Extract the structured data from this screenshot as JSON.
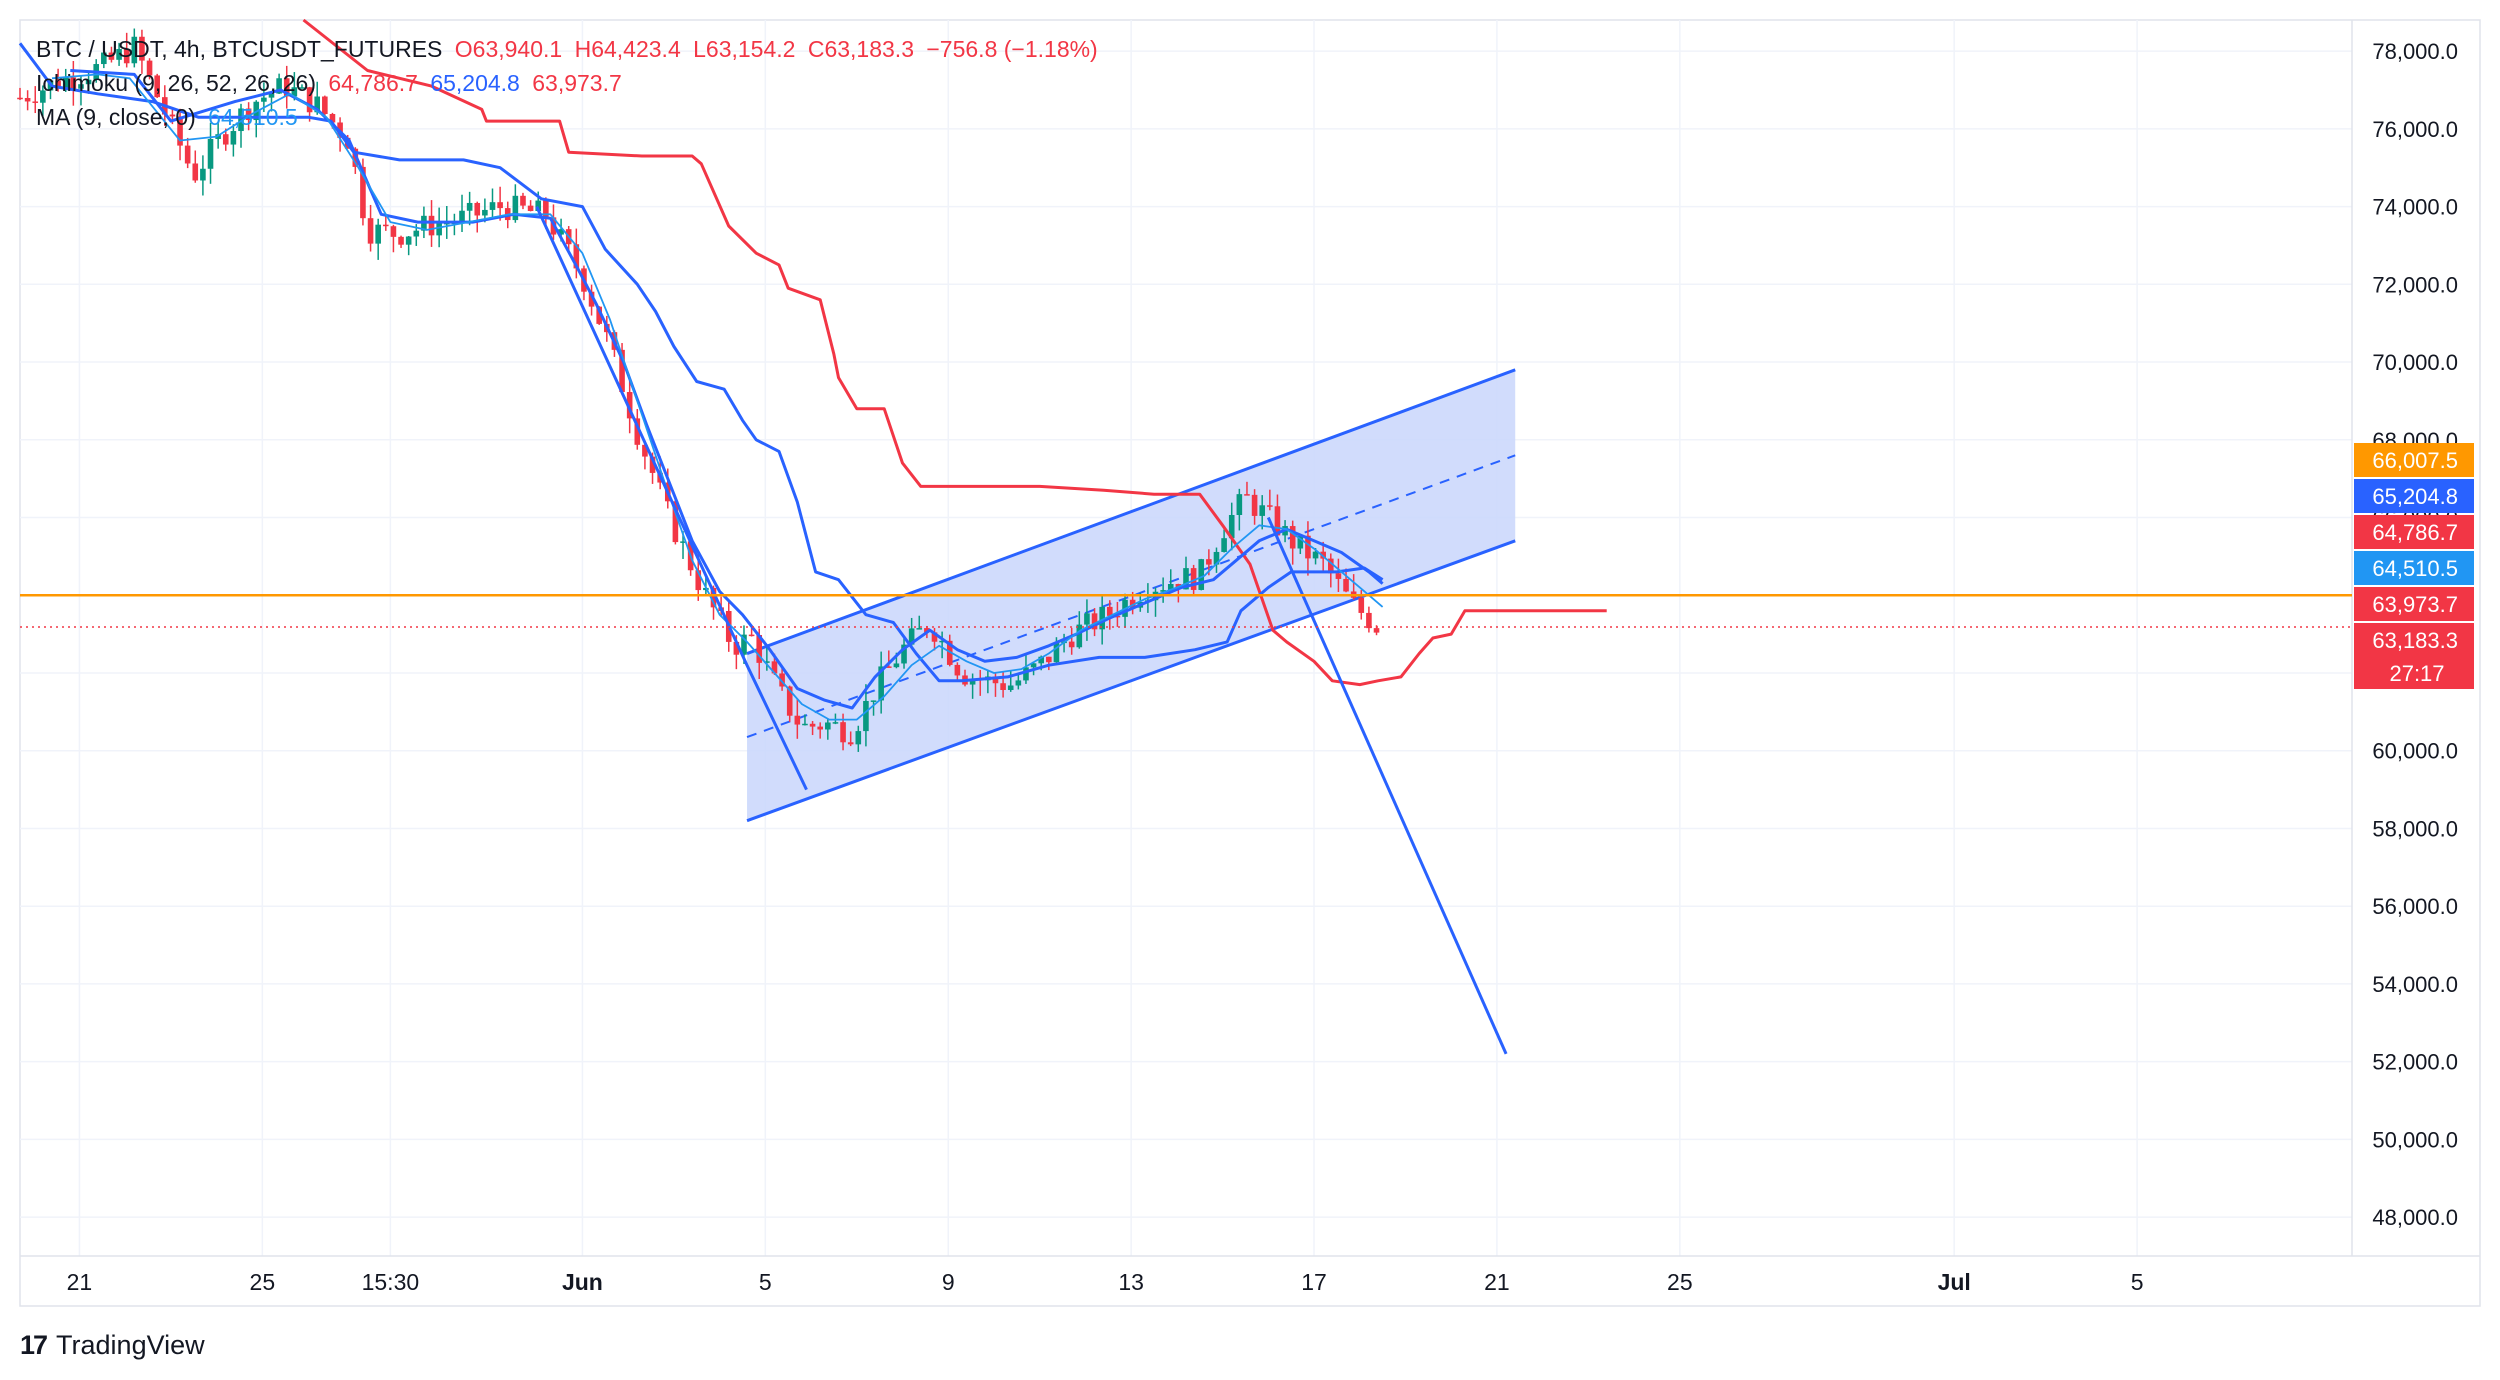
{
  "header": {
    "symbol": "BTC / USDT, 4h, BTCUSDT_FUTURES",
    "open": "O63,940.1",
    "high": "H64,423.4",
    "low": "L63,154.2",
    "close": "C63,183.3",
    "change": "−756.8 (−1.18%)",
    "ichimoku_label": "Ichimoku (9, 26, 52, 26, 26)",
    "ichimoku_v1": "64,786.7",
    "ichimoku_v2": "65,204.8",
    "ichimoku_v3": "63,973.7",
    "ma_label": "MA (9, close, 0)",
    "ma_value": "64,510.5"
  },
  "brand": {
    "name": "TradingView"
  },
  "colors": {
    "up": "#089981",
    "down": "#f23645",
    "blue": "#2962ff",
    "red": "#f23645",
    "ma": "#2196f3",
    "orange": "#ff9800",
    "channel_fill": "#c9d6fb",
    "grid": "#f0f3fa"
  },
  "chart_data": {
    "type": "candlestick",
    "x_ticks": [
      {
        "label": "21",
        "day": 0
      },
      {
        "label": "25",
        "day": 4
      },
      {
        "label": "15:30",
        "day": 6.8
      },
      {
        "label": "Jun",
        "day": 11
      },
      {
        "label": "5",
        "day": 15
      },
      {
        "label": "9",
        "day": 19
      },
      {
        "label": "13",
        "day": 23
      },
      {
        "label": "17",
        "day": 27
      },
      {
        "label": "21",
        "day": 31
      },
      {
        "label": "25",
        "day": 35
      },
      {
        "label": "Jul",
        "day": 41
      },
      {
        "label": "5",
        "day": 45
      }
    ],
    "y_ticks": [
      48000,
      50000,
      52000,
      54000,
      56000,
      58000,
      60000,
      62000,
      64000,
      66000,
      68000,
      70000,
      72000,
      74000,
      76000,
      78000
    ],
    "ylim": [
      47000,
      78800
    ],
    "xlim": [
      -1.3,
      49.7
    ],
    "price_anchors": [
      [
        -1.3,
        76800
      ],
      [
        -0.5,
        77200
      ],
      [
        0.5,
        77600
      ],
      [
        1.2,
        78100
      ],
      [
        1.8,
        76600
      ],
      [
        2.5,
        74800
      ],
      [
        3.1,
        75800
      ],
      [
        3.8,
        76700
      ],
      [
        4.5,
        77100
      ],
      [
        5.2,
        76600
      ],
      [
        5.9,
        75700
      ],
      [
        6.3,
        73400
      ],
      [
        7.0,
        73300
      ],
      [
        7.6,
        73500
      ],
      [
        8.4,
        73700
      ],
      [
        9.2,
        74000
      ],
      [
        10.2,
        73800
      ],
      [
        11.0,
        72200
      ],
      [
        11.6,
        70400
      ],
      [
        12.2,
        68200
      ],
      [
        12.9,
        66000
      ],
      [
        13.6,
        64200
      ],
      [
        14.3,
        62700
      ],
      [
        14.7,
        62900
      ],
      [
        15.3,
        61500
      ],
      [
        15.8,
        60600
      ],
      [
        16.3,
        60700
      ],
      [
        16.9,
        60500
      ],
      [
        17.4,
        61600
      ],
      [
        18.0,
        62600
      ],
      [
        18.6,
        63300
      ],
      [
        19.3,
        62000
      ],
      [
        19.8,
        61800
      ],
      [
        20.4,
        61700
      ],
      [
        21.0,
        62200
      ],
      [
        21.7,
        63000
      ],
      [
        22.5,
        63500
      ],
      [
        23.3,
        64200
      ],
      [
        24.0,
        64400
      ],
      [
        24.5,
        64500
      ],
      [
        25.0,
        65700
      ],
      [
        25.5,
        66500
      ],
      [
        26.0,
        66000
      ],
      [
        26.6,
        65300
      ],
      [
        27.2,
        64800
      ],
      [
        27.8,
        63800
      ],
      [
        28.2,
        63400
      ],
      [
        28.4,
        63183
      ]
    ],
    "series": [
      {
        "name": "Ichimoku lagging span",
        "color": "#f23645",
        "points": [
          [
            4.9,
            78800
          ],
          [
            6.3,
            77500
          ],
          [
            7.7,
            77100
          ],
          [
            8.8,
            76500
          ],
          [
            8.9,
            76200
          ],
          [
            10.5,
            76200
          ],
          [
            10.7,
            75400
          ],
          [
            12.3,
            75300
          ],
          [
            13.4,
            75300
          ],
          [
            13.6,
            75100
          ],
          [
            14.2,
            73500
          ],
          [
            14.8,
            72800
          ],
          [
            15.3,
            72500
          ],
          [
            15.5,
            71900
          ],
          [
            16.2,
            71600
          ],
          [
            16.5,
            70200
          ],
          [
            16.6,
            69600
          ],
          [
            17.0,
            68800
          ],
          [
            17.6,
            68800
          ],
          [
            18.0,
            67400
          ],
          [
            18.4,
            66800
          ],
          [
            21.0,
            66800
          ],
          [
            22.4,
            66700
          ],
          [
            23.5,
            66600
          ],
          [
            24.5,
            66600
          ],
          [
            25.0,
            65800
          ],
          [
            25.6,
            64800
          ],
          [
            26.1,
            63100
          ],
          [
            26.4,
            62800
          ],
          [
            27.0,
            62300
          ],
          [
            27.4,
            61800
          ],
          [
            28.0,
            61700
          ],
          [
            28.4,
            61800
          ],
          [
            28.9,
            61900
          ],
          [
            29.3,
            62500
          ],
          [
            29.6,
            62900
          ],
          [
            30.0,
            63000
          ],
          [
            30.3,
            63600
          ],
          [
            31.8,
            63600
          ],
          [
            32.7,
            63600
          ],
          [
            33.4,
            63600
          ]
        ]
      },
      {
        "name": "Ichimoku span B",
        "color": "#2962ff",
        "points": [
          [
            -1.3,
            78200
          ],
          [
            -0.6,
            77100
          ],
          [
            0.4,
            76900
          ],
          [
            1.6,
            76700
          ],
          [
            2.6,
            76300
          ],
          [
            3.6,
            76300
          ],
          [
            5.0,
            76300
          ],
          [
            5.5,
            76200
          ],
          [
            6.0,
            75400
          ],
          [
            7.0,
            75200
          ],
          [
            8.4,
            75200
          ],
          [
            9.2,
            75000
          ],
          [
            10.1,
            74200
          ],
          [
            11.0,
            74000
          ],
          [
            11.5,
            72900
          ],
          [
            12.2,
            72000
          ],
          [
            12.6,
            71300
          ],
          [
            13.0,
            70400
          ],
          [
            13.5,
            69500
          ],
          [
            14.1,
            69300
          ],
          [
            14.5,
            68500
          ],
          [
            14.8,
            68000
          ],
          [
            15.3,
            67700
          ],
          [
            15.7,
            66400
          ],
          [
            16.1,
            64600
          ],
          [
            16.6,
            64400
          ],
          [
            17.2,
            63500
          ],
          [
            17.8,
            63300
          ],
          [
            18.3,
            62500
          ],
          [
            18.8,
            61800
          ],
          [
            19.3,
            61800
          ],
          [
            20.3,
            61900
          ],
          [
            21.2,
            62200
          ],
          [
            22.3,
            62400
          ],
          [
            23.3,
            62400
          ],
          [
            24.4,
            62600
          ],
          [
            25.1,
            62800
          ],
          [
            25.4,
            63600
          ],
          [
            26.0,
            64200
          ],
          [
            26.5,
            64600
          ],
          [
            27.5,
            64600
          ],
          [
            28.1,
            64700
          ],
          [
            28.5,
            64400
          ]
        ]
      },
      {
        "name": "Ichimoku base line",
        "color": "#2962ff",
        "points": [
          [
            -0.2,
            77500
          ],
          [
            1.2,
            77400
          ],
          [
            2.0,
            76200
          ],
          [
            3.4,
            76700
          ],
          [
            4.4,
            77000
          ],
          [
            5.2,
            76500
          ],
          [
            5.9,
            75700
          ],
          [
            6.6,
            73800
          ],
          [
            7.4,
            73600
          ],
          [
            8.6,
            73600
          ],
          [
            9.5,
            73800
          ],
          [
            10.3,
            73700
          ],
          [
            10.9,
            72400
          ],
          [
            11.3,
            71500
          ],
          [
            11.9,
            70000
          ],
          [
            12.4,
            68400
          ],
          [
            12.9,
            66900
          ],
          [
            13.4,
            65400
          ],
          [
            14.0,
            64100
          ],
          [
            14.5,
            63500
          ],
          [
            15.1,
            62600
          ],
          [
            15.7,
            61600
          ],
          [
            16.3,
            61300
          ],
          [
            16.9,
            61100
          ],
          [
            17.4,
            61900
          ],
          [
            18.0,
            62600
          ],
          [
            18.6,
            63100
          ],
          [
            19.2,
            62600
          ],
          [
            19.8,
            62300
          ],
          [
            20.5,
            62400
          ],
          [
            21.2,
            62700
          ],
          [
            21.8,
            63000
          ],
          [
            22.5,
            63400
          ],
          [
            23.3,
            63800
          ],
          [
            24.1,
            64200
          ],
          [
            24.8,
            64400
          ],
          [
            25.3,
            64900
          ],
          [
            25.8,
            65400
          ],
          [
            26.4,
            65700
          ],
          [
            27.0,
            65400
          ],
          [
            27.6,
            65100
          ],
          [
            28.2,
            64600
          ],
          [
            28.5,
            64300
          ]
        ]
      },
      {
        "name": "MA (9, close, 0)",
        "color": "#2196f3",
        "points": [
          [
            -0.6,
            77300
          ],
          [
            0.4,
            77400
          ],
          [
            1.1,
            77300
          ],
          [
            2.2,
            75700
          ],
          [
            3.0,
            75800
          ],
          [
            3.8,
            76400
          ],
          [
            4.6,
            76900
          ],
          [
            5.4,
            76300
          ],
          [
            6.1,
            75000
          ],
          [
            6.8,
            73600
          ],
          [
            7.6,
            73400
          ],
          [
            8.5,
            73600
          ],
          [
            9.4,
            73800
          ],
          [
            10.3,
            73800
          ],
          [
            11.0,
            72800
          ],
          [
            11.6,
            71100
          ],
          [
            12.2,
            69000
          ],
          [
            12.8,
            66900
          ],
          [
            13.4,
            64900
          ],
          [
            14.0,
            63500
          ],
          [
            14.6,
            62800
          ],
          [
            15.2,
            62000
          ],
          [
            15.8,
            61200
          ],
          [
            16.4,
            60800
          ],
          [
            17.0,
            60800
          ],
          [
            17.6,
            61400
          ],
          [
            18.2,
            62200
          ],
          [
            18.8,
            62700
          ],
          [
            19.4,
            62300
          ],
          [
            20.0,
            62000
          ],
          [
            20.6,
            62100
          ],
          [
            21.2,
            62500
          ],
          [
            21.9,
            63100
          ],
          [
            22.6,
            63500
          ],
          [
            23.3,
            63900
          ],
          [
            24.0,
            64200
          ],
          [
            24.6,
            64500
          ],
          [
            25.2,
            65200
          ],
          [
            25.8,
            65800
          ],
          [
            26.4,
            65700
          ],
          [
            27.0,
            65200
          ],
          [
            27.6,
            64600
          ],
          [
            28.2,
            64000
          ],
          [
            28.5,
            63700
          ]
        ]
      },
      {
        "name": "Drawn line",
        "color": "#2962ff",
        "points": [
          [
            10.0,
            74000
          ],
          [
            14.6,
            62200
          ],
          [
            15.9,
            59000
          ]
        ]
      },
      {
        "name": "Drawn line",
        "color": "#2962ff",
        "points": [
          [
            26.0,
            66000
          ],
          [
            31.2,
            52200
          ]
        ]
      }
    ],
    "channel": {
      "upper": [
        [
          14.6,
          62500
        ],
        [
          31.4,
          69800
        ]
      ],
      "lower": [
        [
          14.6,
          58200
        ],
        [
          31.4,
          65400
        ]
      ],
      "mid": [
        [
          14.6,
          60350
        ],
        [
          31.4,
          67600
        ]
      ]
    },
    "horizontal_line": {
      "value": 64000,
      "color": "#ff9800"
    },
    "last_price_line": {
      "value": 63183.3,
      "color": "#f23645"
    },
    "price_labels": [
      {
        "text": "66,007.5",
        "value": 66007.5,
        "color": "#ff9800"
      },
      {
        "text": "65,204.8",
        "value": 65204.8,
        "color": "#2962ff"
      },
      {
        "text": "64,786.7",
        "value": 64786.7,
        "color": "#f23645"
      },
      {
        "text": "64,510.5",
        "value": 64510.5,
        "color": "#2196f3"
      },
      {
        "text": "63,973.7",
        "value": 63973.7,
        "color": "#f23645"
      },
      {
        "text": "63,183.3",
        "value": 63183.3,
        "color": "#f23645",
        "sub": "27:17"
      }
    ]
  }
}
